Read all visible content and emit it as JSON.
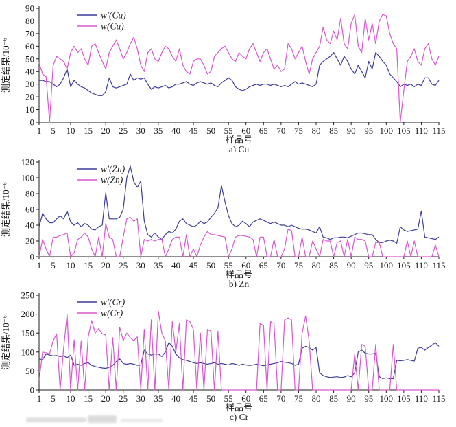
{
  "figure": {
    "xlabel": "样品号",
    "ylabel": "测定结果/10⁻⁶",
    "colors": {
      "series_corrected": "#3c3c9b",
      "series_measured": "#d957ce",
      "axis": "#1c1c1c"
    }
  },
  "chart_data": [
    {
      "id": "cu",
      "type": "line",
      "caption": "a) Cu",
      "xlabel": "样品号",
      "ylabel": "测定结果/10⁻⁶",
      "xlim": [
        1,
        115
      ],
      "ylim": [
        0,
        90
      ],
      "ytick_step": 10,
      "xticks": [
        1,
        5,
        10,
        15,
        20,
        25,
        30,
        35,
        40,
        45,
        50,
        55,
        60,
        65,
        70,
        75,
        80,
        85,
        90,
        95,
        100,
        105,
        110,
        115
      ],
      "legend_position": "top-left-inside",
      "grid": false,
      "series": [
        {
          "name": "w′(Cu)",
          "color": "#3c3c9b",
          "values": [
            33,
            33,
            32,
            32,
            30,
            28,
            30,
            35,
            42,
            28,
            33,
            30,
            28,
            27,
            25,
            23,
            22,
            21,
            21,
            24,
            35,
            28,
            27,
            28,
            29,
            30,
            38,
            33,
            35,
            34,
            35,
            30,
            26,
            28,
            27,
            28,
            29,
            27,
            28,
            30,
            30,
            31,
            32,
            30,
            29,
            31,
            32,
            31,
            30,
            31,
            29,
            28,
            31,
            33,
            35,
            33,
            28,
            26,
            25,
            26,
            28,
            29,
            30,
            29,
            30,
            30,
            29,
            30,
            29,
            28,
            29,
            28,
            30,
            32,
            30,
            31,
            30,
            29,
            28,
            30,
            45,
            48,
            50,
            52,
            55,
            50,
            45,
            52,
            48,
            42,
            38,
            45,
            40,
            35,
            48,
            42,
            55,
            52,
            48,
            45,
            38,
            35,
            32,
            28,
            30,
            29,
            30,
            28,
            30,
            29,
            35,
            35,
            30,
            29,
            33
          ]
        },
        {
          "name": "w(Cu)",
          "color": "#d957ce",
          "values": [
            47,
            38,
            36,
            0,
            45,
            52,
            50,
            48,
            42,
            55,
            60,
            55,
            58,
            50,
            45,
            60,
            62,
            55,
            48,
            42,
            55,
            60,
            65,
            58,
            50,
            55,
            62,
            67,
            58,
            45,
            40,
            55,
            58,
            50,
            48,
            55,
            60,
            58,
            52,
            48,
            58,
            45,
            40,
            38,
            48,
            50,
            50,
            45,
            38,
            40,
            52,
            55,
            58,
            60,
            55,
            50,
            48,
            55,
            52,
            50,
            58,
            62,
            55,
            48,
            55,
            58,
            50,
            42,
            45,
            40,
            42,
            62,
            58,
            50,
            55,
            60,
            48,
            38,
            50,
            55,
            60,
            75,
            65,
            62,
            72,
            65,
            82,
            62,
            58,
            78,
            85,
            60,
            55,
            82,
            65,
            78,
            62,
            80,
            85,
            84,
            70,
            62,
            58,
            0,
            25,
            48,
            52,
            58,
            48,
            45,
            58,
            62,
            50,
            45,
            52
          ]
        }
      ]
    },
    {
      "id": "zn",
      "type": "line",
      "caption": "b) Zn",
      "xlabel": "样品号",
      "ylabel": "测定结果/10⁻⁶",
      "xlim": [
        1,
        115
      ],
      "ylim": [
        0,
        120
      ],
      "ytick_step": 20,
      "xticks": [
        1,
        5,
        10,
        15,
        20,
        25,
        30,
        35,
        40,
        45,
        50,
        55,
        60,
        65,
        70,
        75,
        80,
        85,
        90,
        95,
        100,
        105,
        110,
        115
      ],
      "legend_position": "top-left-inside",
      "grid": false,
      "series": [
        {
          "name": "w′(Zn)",
          "color": "#3c3c9b",
          "values": [
            38,
            55,
            48,
            43,
            43,
            48,
            52,
            48,
            58,
            44,
            40,
            43,
            38,
            42,
            40,
            35,
            34,
            38,
            40,
            81,
            48,
            48,
            48,
            50,
            60,
            100,
            115,
            95,
            88,
            96,
            45,
            28,
            25,
            30,
            25,
            22,
            28,
            32,
            30,
            35,
            45,
            48,
            42,
            40,
            38,
            40,
            45,
            42,
            44,
            50,
            55,
            62,
            90,
            70,
            52,
            42,
            38,
            40,
            45,
            42,
            38,
            44,
            46,
            48,
            46,
            44,
            42,
            44,
            42,
            40,
            40,
            38,
            40,
            38,
            36,
            35,
            35,
            34,
            32,
            30,
            38,
            25,
            24,
            22,
            24,
            24,
            25,
            25,
            24,
            26,
            28,
            30,
            30,
            29,
            28,
            28,
            22,
            18,
            18,
            20,
            21,
            20,
            17,
            38,
            34,
            32,
            33,
            34,
            35,
            58,
            25,
            24,
            23,
            22,
            25
          ]
        },
        {
          "name": "w(Zn)",
          "color": "#d957ce",
          "values": [
            0,
            22,
            10,
            0,
            25,
            25,
            27,
            28,
            30,
            0,
            5,
            22,
            25,
            30,
            25,
            10,
            0,
            25,
            0,
            42,
            25,
            22,
            0,
            0,
            25,
            48,
            50,
            45,
            48,
            0,
            22,
            20,
            22,
            20,
            22,
            22,
            0,
            10,
            22,
            25,
            25,
            0,
            28,
            0,
            10,
            0,
            15,
            25,
            32,
            28,
            28,
            27,
            26,
            25,
            0,
            10,
            25,
            27,
            27,
            26,
            25,
            22,
            0,
            25,
            25,
            0,
            0,
            22,
            0,
            0,
            10,
            35,
            33,
            0,
            0,
            25,
            0,
            0,
            20,
            10,
            0,
            22,
            20,
            20,
            0,
            18,
            20,
            0,
            22,
            0,
            25,
            22,
            22,
            20,
            0,
            0,
            18,
            18,
            0,
            0,
            0,
            0,
            0,
            0,
            0,
            20,
            0,
            20,
            0,
            0,
            0,
            0,
            0,
            15,
            0
          ]
        }
      ]
    },
    {
      "id": "cr",
      "type": "line",
      "caption": "c) Cr",
      "xlabel": "样品号",
      "ylabel": "测定结果/10⁻⁶",
      "xlim": [
        1,
        115
      ],
      "ylim": [
        0,
        250
      ],
      "ytick_step": 50,
      "xticks": [
        1,
        5,
        10,
        15,
        20,
        25,
        30,
        35,
        40,
        45,
        50,
        55,
        60,
        65,
        70,
        75,
        80,
        85,
        90,
        95,
        100,
        105,
        110,
        115
      ],
      "legend_position": "top-left-inside",
      "grid": false,
      "series": [
        {
          "name": "w′(Cr)",
          "color": "#3c3c9b",
          "values": [
            82,
            80,
            95,
            92,
            90,
            91,
            88,
            90,
            85,
            92,
            65,
            68,
            65,
            70,
            72,
            65,
            62,
            60,
            58,
            57,
            60,
            65,
            75,
            82,
            70,
            68,
            70,
            68,
            65,
            66,
            105,
            95,
            92,
            95,
            95,
            88,
            100,
            125,
            115,
            95,
            85,
            80,
            78,
            75,
            72,
            70,
            72,
            70,
            68,
            70,
            72,
            68,
            70,
            68,
            66,
            70,
            68,
            65,
            68,
            66,
            65,
            66,
            68,
            66,
            64,
            66,
            68,
            70,
            72,
            75,
            73,
            72,
            70,
            65,
            68,
            110,
            115,
            112,
            105,
            112,
            45,
            38,
            35,
            33,
            34,
            35,
            33,
            34,
            38,
            35,
            45,
            100,
            105,
            97,
            95,
            95,
            97,
            35,
            30,
            32,
            30,
            30,
            78,
            77,
            78,
            80,
            78,
            76,
            110,
            112,
            105,
            112,
            118,
            125,
            115
          ]
        },
        {
          "name": "w(Cr)",
          "color": "#d957ce",
          "values": [
            25,
            100,
            98,
            95,
            130,
            148,
            0,
            110,
            200,
            0,
            132,
            0,
            130,
            0,
            140,
            183,
            150,
            162,
            148,
            145,
            0,
            138,
            0,
            165,
            130,
            150,
            138,
            130,
            140,
            0,
            160,
            0,
            185,
            0,
            208,
            150,
            130,
            0,
            180,
            100,
            175,
            0,
            185,
            180,
            160,
            0,
            150,
            0,
            160,
            155,
            0,
            155,
            0,
            0,
            0,
            0,
            0,
            0,
            0,
            0,
            0,
            0,
            0,
            175,
            170,
            0,
            180,
            175,
            0,
            0,
            185,
            190,
            185,
            0,
            0,
            150,
            195,
            130,
            0,
            0,
            0,
            0,
            0,
            0,
            0,
            0,
            0,
            0,
            0,
            0,
            95,
            0,
            120,
            115,
            0,
            0,
            120,
            0,
            0,
            0,
            0,
            120,
            0,
            0,
            0,
            0,
            0,
            0,
            0,
            0,
            0,
            0,
            0,
            0,
            0
          ]
        }
      ]
    }
  ]
}
